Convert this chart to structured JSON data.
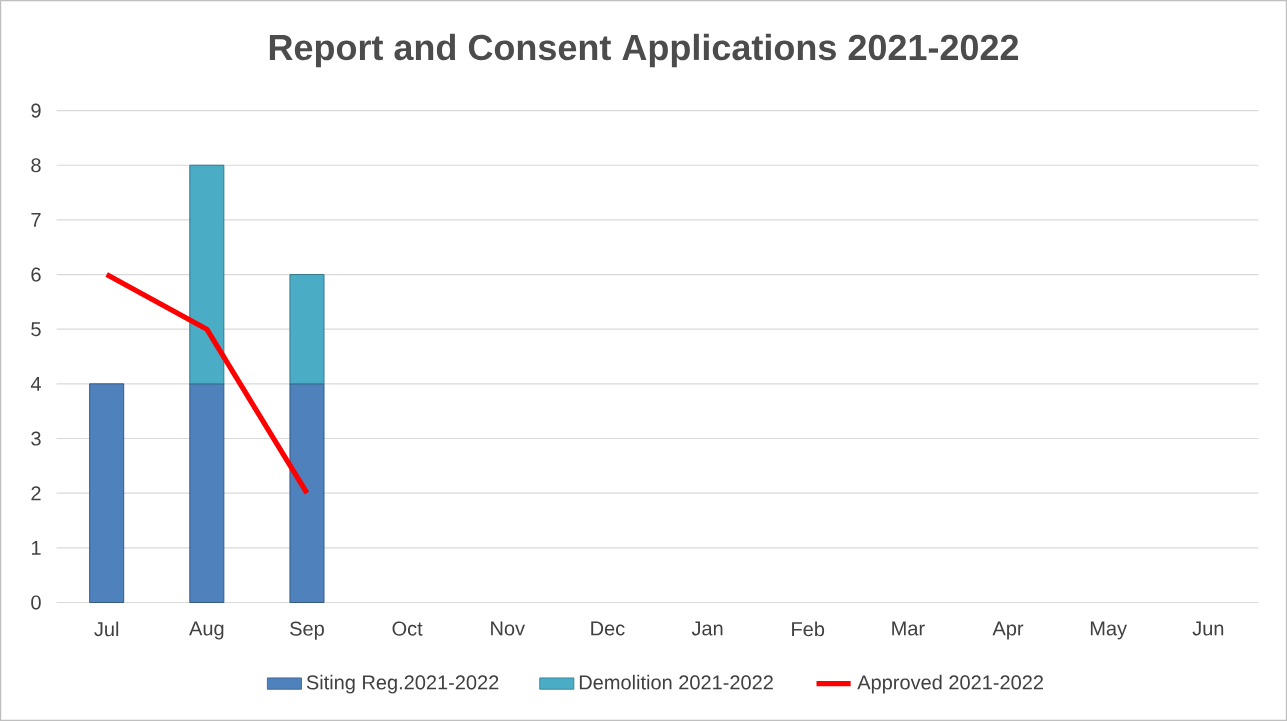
{
  "chart_data": {
    "type": "bar",
    "title": "Report and Consent Applications 2021-2022",
    "categories": [
      "Jul",
      "Aug",
      "Sep",
      "Oct",
      "Nov",
      "Dec",
      "Jan",
      "Feb",
      "Mar",
      "Apr",
      "May",
      "Jun"
    ],
    "series": [
      {
        "name": "Siting Reg.2021-2022",
        "color": "#4f81bd",
        "values": [
          4,
          4,
          4,
          null,
          null,
          null,
          null,
          null,
          null,
          null,
          null,
          null
        ]
      },
      {
        "name": "Demolition 2021-2022",
        "color": "#4bacc6",
        "values": [
          null,
          4,
          2,
          null,
          null,
          null,
          null,
          null,
          null,
          null,
          null,
          null
        ]
      },
      {
        "name": "Approved 2021-2022",
        "type": "line",
        "color": "#ff0000",
        "values": [
          6,
          5,
          2,
          null,
          null,
          null,
          null,
          null,
          null,
          null,
          null,
          null
        ]
      }
    ],
    "stacked": true,
    "ylim": [
      0,
      9
    ],
    "yticks": [
      0,
      1,
      2,
      3,
      4,
      5,
      6,
      7,
      8,
      9
    ],
    "grid": "y",
    "legend": "bottom"
  }
}
